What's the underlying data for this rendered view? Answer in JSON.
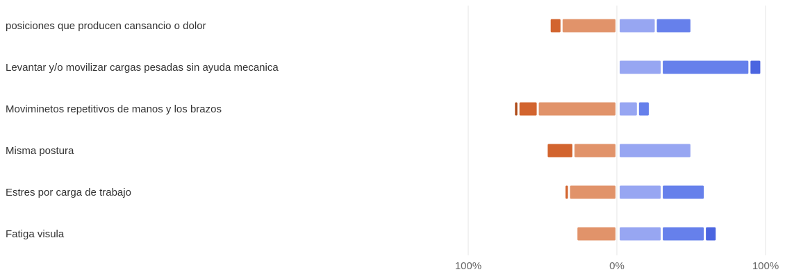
{
  "chart_data": {
    "type": "bar",
    "subtype": "diverging-stacked-horizontal",
    "categories": [
      "posiciones que producen cansancio o dolor",
      "Levantar y/o movilizar cargas pesadas sin ayuda mecanica",
      "Moviminetos repetitivos de manos y los brazos",
      "Misma postura",
      "Estres por carga de trabajo",
      "Fatiga visula"
    ],
    "series": [
      {
        "side": "negative",
        "color": "#AE4A17",
        "values": [
          0,
          0,
          3,
          0,
          0,
          0
        ]
      },
      {
        "side": "negative",
        "color": "#D2642E",
        "values": [
          8,
          0,
          13,
          18,
          3,
          0
        ]
      },
      {
        "side": "negative",
        "color": "#E1936A",
        "values": [
          37,
          0,
          53,
          29,
          32,
          27
        ]
      },
      {
        "side": "positive",
        "color": "#97A6F2",
        "values": [
          25,
          29,
          13,
          49,
          29,
          29
        ]
      },
      {
        "side": "positive",
        "color": "#6680EB",
        "values": [
          24,
          59,
          8,
          0,
          29,
          29
        ]
      },
      {
        "side": "positive",
        "color": "#4B65E0",
        "values": [
          0,
          8,
          0,
          0,
          0,
          8
        ]
      }
    ],
    "xlim": [
      -100,
      100
    ],
    "x_ticks": [
      "100%",
      "0%",
      "100%"
    ],
    "grid": true,
    "legend": "none"
  }
}
